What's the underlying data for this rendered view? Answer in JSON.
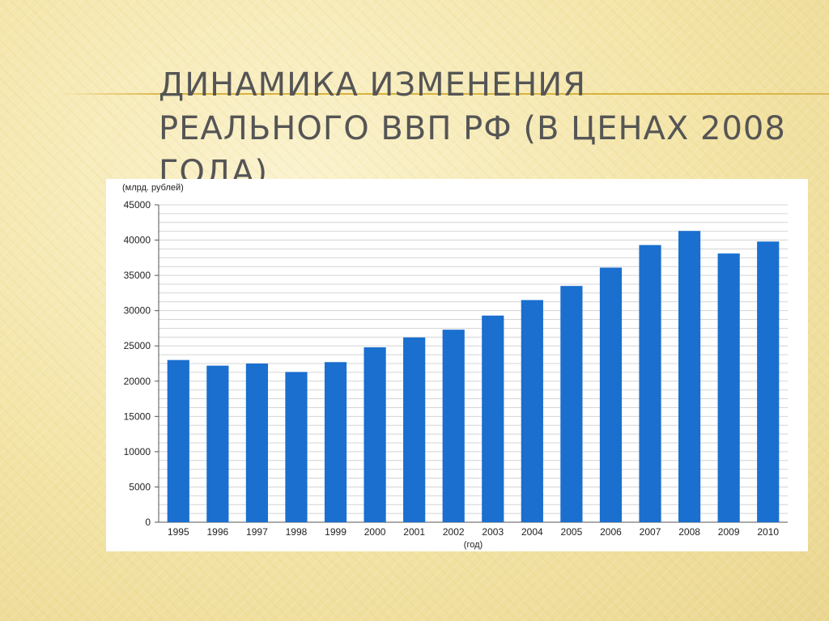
{
  "slide": {
    "title": "ДИНАМИКА ИЗМЕНЕНИЯ РЕАЛЬНОГО ВВП РФ (В ЦЕНАХ 2008 ГОДА)"
  },
  "chart_data": {
    "type": "bar",
    "title": "",
    "ylabel": "(млрд. рублей)",
    "xlabel": "(год)",
    "categories": [
      "1995",
      "1996",
      "1997",
      "1998",
      "1999",
      "2000",
      "2001",
      "2002",
      "2003",
      "2004",
      "2005",
      "2006",
      "2007",
      "2008",
      "2009",
      "2010"
    ],
    "values": [
      23000,
      22200,
      22500,
      21300,
      22700,
      24800,
      26200,
      27300,
      29300,
      31500,
      33500,
      36100,
      39300,
      41300,
      38100,
      39800
    ],
    "ylim": [
      0,
      45000
    ],
    "yticks": [
      "0",
      "5000",
      "10000",
      "15000",
      "20000",
      "25000",
      "30000",
      "35000",
      "40000",
      "45000"
    ],
    "bar_color": "#1a6fcf",
    "grid": true,
    "legend": "none"
  }
}
